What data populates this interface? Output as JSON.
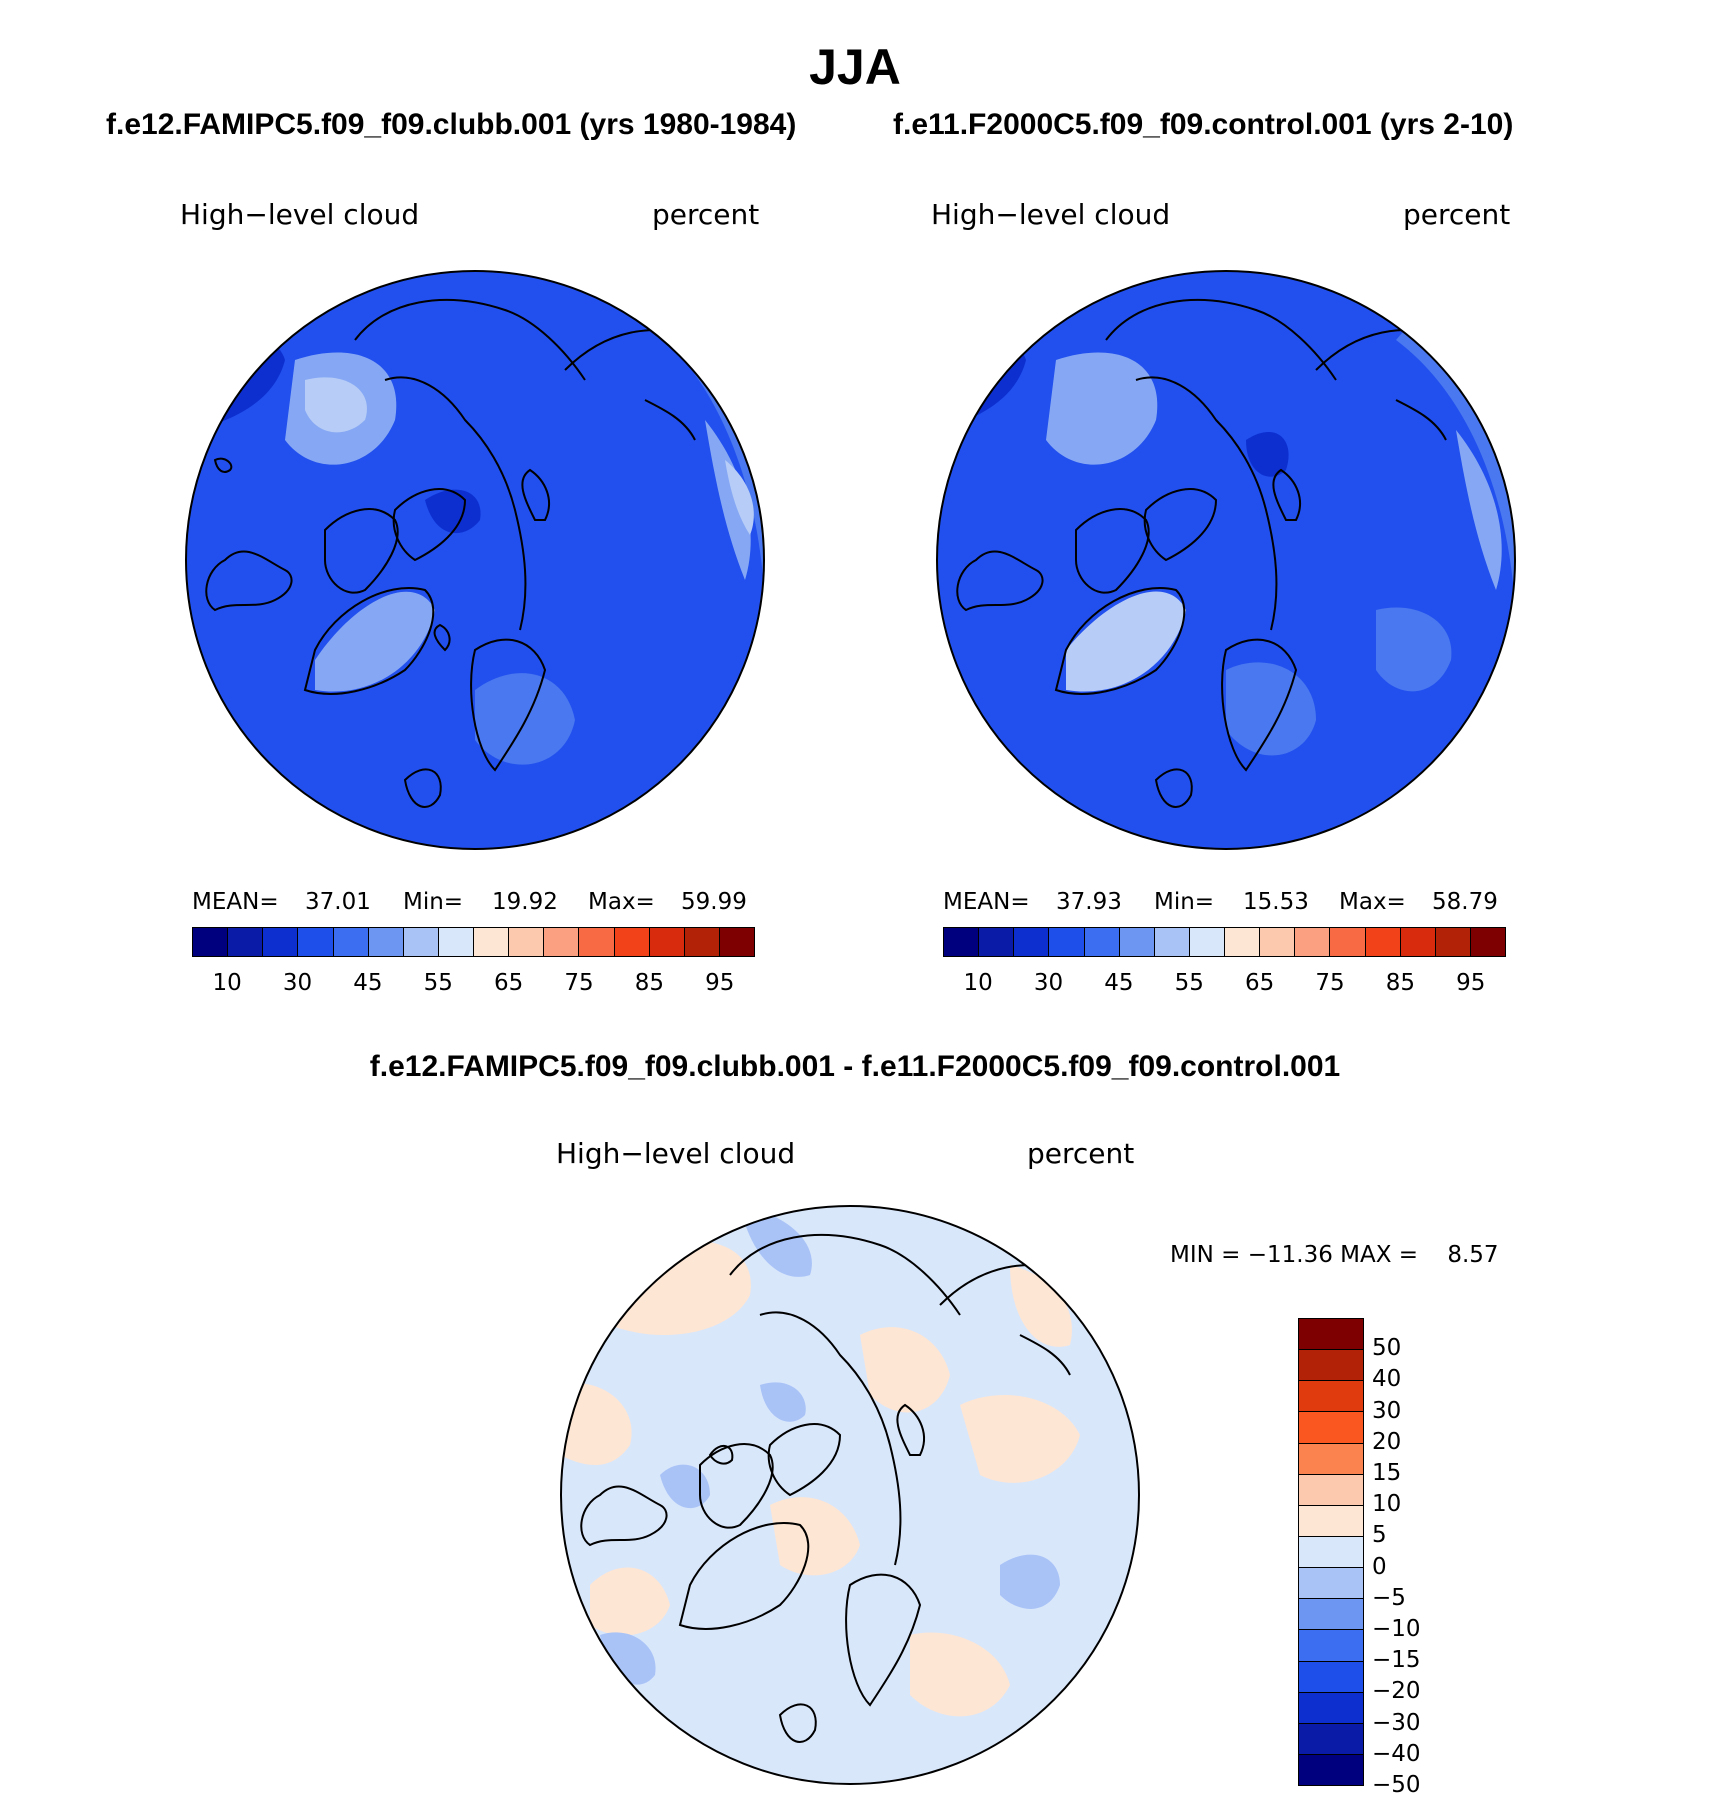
{
  "page_title": "JJA",
  "panel_a": {
    "case_title": "f.e12.FAMIPC5.f09_f09.clubb.001 (yrs 1980-1984)",
    "variable": "High−level cloud",
    "units": "percent",
    "mean_label": "MEAN=",
    "mean_value": "37.01",
    "min_label": "Min=",
    "min_value": "19.92",
    "max_label": "Max=",
    "max_value": "59.99"
  },
  "panel_b": {
    "case_title": "f.e11.F2000C5.f09_f09.control.001 (yrs 2-10)",
    "variable": "High−level cloud",
    "units": "percent",
    "mean_label": "MEAN=",
    "mean_value": "37.93",
    "min_label": "Min=",
    "min_value": "15.53",
    "max_label": "Max=",
    "max_value": "58.79"
  },
  "panel_diff": {
    "case_title": "f.e12.FAMIPC5.f09_f09.clubb.001 - f.e11.F2000C5.f09_f09.control.001",
    "variable": "High−level cloud",
    "units": "percent",
    "minmax_text": "MIN = −11.36 MAX =    8.57"
  },
  "colorbar_abs": {
    "colors": [
      "#00007f",
      "#0a1ba8",
      "#0d2fd0",
      "#1f4fea",
      "#3b6ef0",
      "#6d95f2",
      "#a9c3f7",
      "#d9e7fb",
      "#fde6d4",
      "#fcc8ae",
      "#fba181",
      "#f86a44",
      "#f2421a",
      "#d82b0e",
      "#b22207",
      "#7f0000"
    ],
    "ticks": [
      "10",
      "30",
      "45",
      "55",
      "65",
      "75",
      "85",
      "95"
    ]
  },
  "colorbar_diff": {
    "colors": [
      "#7f0000",
      "#b22207",
      "#e03a0f",
      "#f9571f",
      "#fb8350",
      "#fcc8ae",
      "#fde6d4",
      "#d9e7fb",
      "#a9c3f7",
      "#6d95f2",
      "#3b6ef0",
      "#1f4fea",
      "#0d2fd0",
      "#0a1ba8",
      "#00007f"
    ],
    "ticks": [
      "50",
      "40",
      "30",
      "20",
      "15",
      "10",
      "5",
      "0",
      "−5",
      "−10",
      "−15",
      "−20",
      "−30",
      "−40",
      "−50"
    ]
  },
  "map_colors": {
    "abs_base": "#2150ee",
    "abs_light": "#4a78f0",
    "abs_lighter": "#86a8f4",
    "abs_pale": "#b7cdf7",
    "abs_dark": "#0d2fd0",
    "diff_base": "#d9e7fb",
    "diff_warm": "#fde6d4",
    "diff_cool": "#a9c3f7"
  }
}
